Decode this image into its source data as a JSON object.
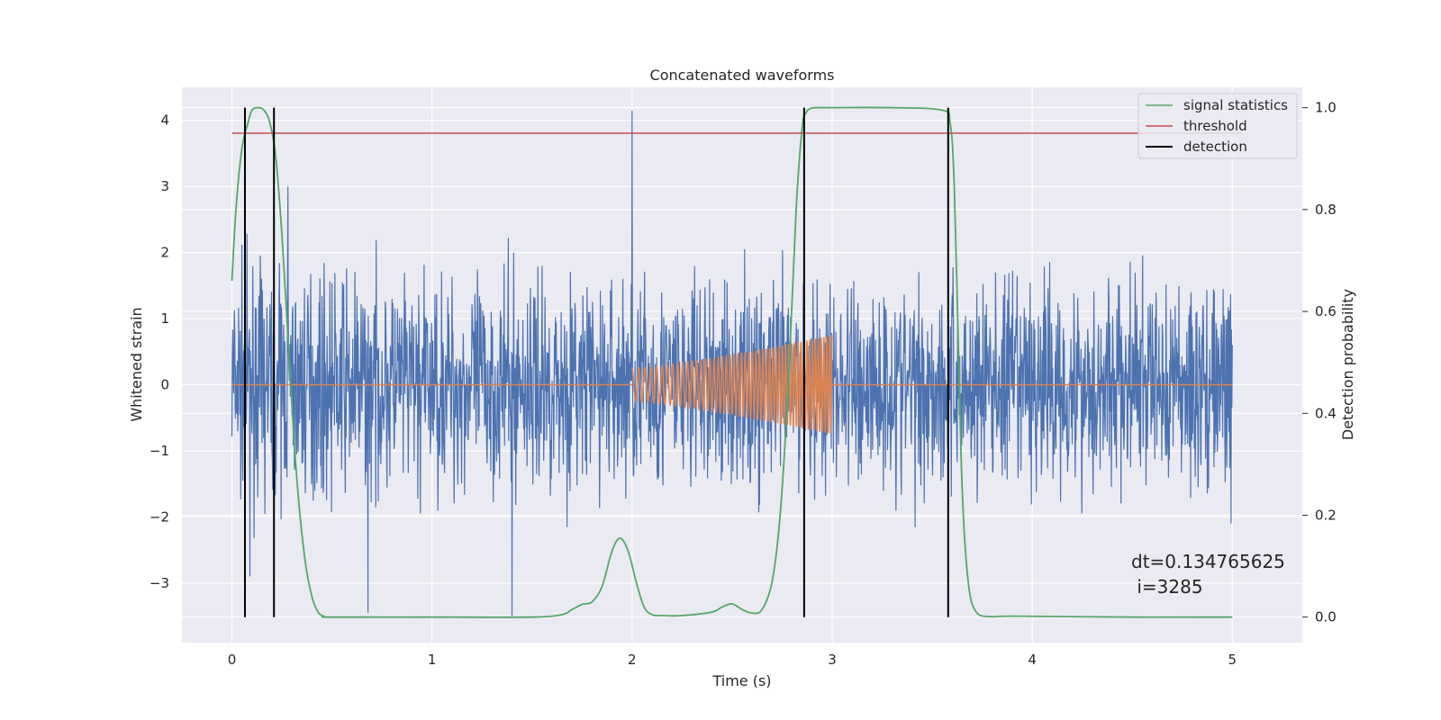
{
  "chart_data": {
    "type": "line",
    "title": "Concatenated waveforms",
    "xlabel": "Time (s)",
    "ylabel": "Whitened strain",
    "y2label": "Detection probability",
    "xlim": [
      -0.25,
      5.35
    ],
    "ylim": [
      -3.9,
      4.5
    ],
    "y2lim": [
      -0.05,
      1.04
    ],
    "xticks": [
      "0",
      "1",
      "2",
      "3",
      "4",
      "5"
    ],
    "yticks": [
      "4",
      "3",
      "2",
      "1",
      "0",
      "−1",
      "−2",
      "−3"
    ],
    "y2ticks": [
      "1.0",
      "0.8",
      "0.6",
      "0.4",
      "0.2",
      "0.0"
    ],
    "grid": true,
    "legend_position": "top-right",
    "series": [
      {
        "name": "signal statistics",
        "axis": "right",
        "color": "#55a868",
        "x": [
          0,
          0.02,
          0.05,
          0.08,
          0.1,
          0.13,
          0.16,
          0.19,
          0.22,
          0.25,
          0.28,
          0.31,
          0.34,
          0.37,
          0.4,
          0.43,
          0.46,
          0.5,
          1.0,
          1.5,
          1.65,
          1.7,
          1.75,
          1.8,
          1.85,
          1.9,
          1.94,
          1.98,
          2.02,
          2.06,
          2.1,
          2.15,
          2.25,
          2.4,
          2.45,
          2.5,
          2.55,
          2.6,
          2.65,
          2.7,
          2.74,
          2.78,
          2.82,
          2.85,
          2.87,
          2.89,
          2.92,
          3.0,
          3.3,
          3.55,
          3.59,
          3.61,
          3.63,
          3.65,
          3.68,
          3.72,
          3.8,
          3.9,
          4.5,
          5.0
        ],
        "y": [
          0.66,
          0.8,
          0.92,
          0.97,
          0.995,
          1.0,
          0.995,
          0.97,
          0.9,
          0.75,
          0.55,
          0.35,
          0.2,
          0.1,
          0.04,
          0.01,
          0.002,
          0.0,
          0.0,
          0.0,
          0.005,
          0.015,
          0.025,
          0.03,
          0.06,
          0.13,
          0.155,
          0.13,
          0.07,
          0.02,
          0.005,
          0.003,
          0.003,
          0.01,
          0.02,
          0.026,
          0.015,
          0.008,
          0.015,
          0.07,
          0.2,
          0.45,
          0.8,
          0.96,
          0.99,
          0.998,
          1.0,
          1.0,
          1.0,
          0.995,
          0.97,
          0.85,
          0.55,
          0.25,
          0.07,
          0.01,
          0.001,
          0.002,
          0.0,
          0.0
        ]
      },
      {
        "name": "threshold",
        "axis": "right",
        "color": "#c44e52",
        "x": [
          0,
          5.05
        ],
        "y": [
          0.95,
          0.95
        ]
      },
      {
        "name": "detection",
        "axis": "right",
        "color": "#000000",
        "vlines_x": [
          0.065,
          0.21,
          2.86,
          3.58
        ],
        "ymin": 0.0,
        "ymax": 1.0
      },
      {
        "name": "",
        "axis": "left",
        "color": "#4c72b0",
        "description": "whitened noise strain, t = 0 to 5 s",
        "x_range": [
          0,
          5
        ],
        "peak_at": [
          [
            2.0,
            4.15
          ],
          [
            0.28,
            3.0
          ],
          [
            0.68,
            -3.45
          ],
          [
            1.4,
            -3.5
          ],
          [
            0.09,
            -2.9
          ]
        ]
      },
      {
        "name": "",
        "axis": "left",
        "color": "#dd8452",
        "description": "injected chirp, zero outside 2 to 3 s",
        "x": [
          0,
          2.0,
          2.0,
          3.0,
          3.0,
          5.0
        ],
        "y": [
          0,
          0,
          0.25,
          0.75,
          0,
          0
        ]
      }
    ],
    "annotations": [
      {
        "text": "dt=0.134765625",
        "line": 1
      },
      {
        "text": " i=3285",
        "line": 2
      }
    ]
  }
}
